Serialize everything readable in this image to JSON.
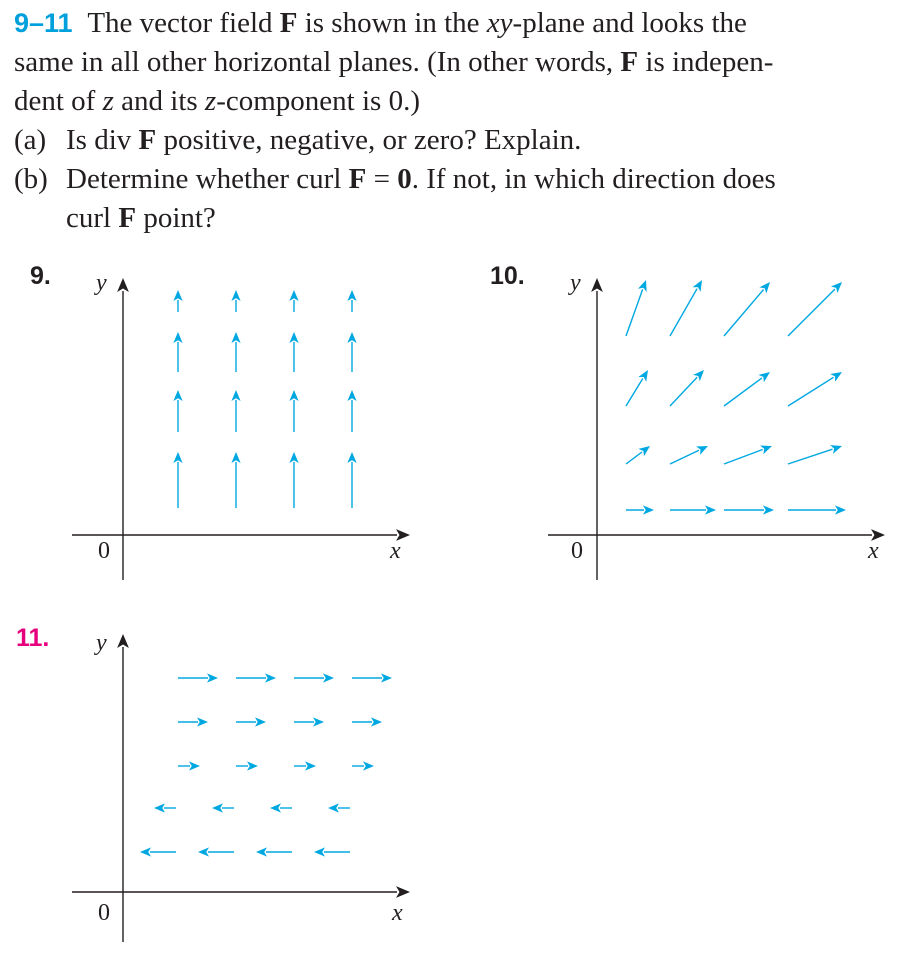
{
  "problem": {
    "number": "9–11",
    "line1_rest": "The vector field",
    "F": "F",
    "line1_tail": "is shown in the",
    "xy": "xy",
    "line1_end": "-plane and looks the",
    "line2a": "same in all other horizontal planes. (In other words,",
    "line2_tail": "is indepen-",
    "line3a": "dent of",
    "z": "z",
    "line3b": "and its",
    "line3c": "-component is 0.)",
    "a_label": "(a)",
    "a_text1": "Is div",
    "a_text2": "positive, negative, or zero? Explain.",
    "b_label": "(b)",
    "b_text1": "Determine whether curl",
    "b_eq": "=",
    "zero": "0",
    "b_text2": ". If not, in which direction does",
    "b_text3": "curl",
    "b_text4": "point?"
  },
  "figures": [
    {
      "label": "9.",
      "x_axis": "x",
      "y_axis": "y",
      "origin": "0",
      "arrow_color": "#00a8e1"
    },
    {
      "label": "10.",
      "x_axis": "x",
      "y_axis": "y",
      "origin": "0",
      "arrow_color": "#00a8e1"
    },
    {
      "label": "11.",
      "x_axis": "x",
      "y_axis": "y",
      "origin": "0",
      "arrow_color": "#00a8e1"
    }
  ]
}
